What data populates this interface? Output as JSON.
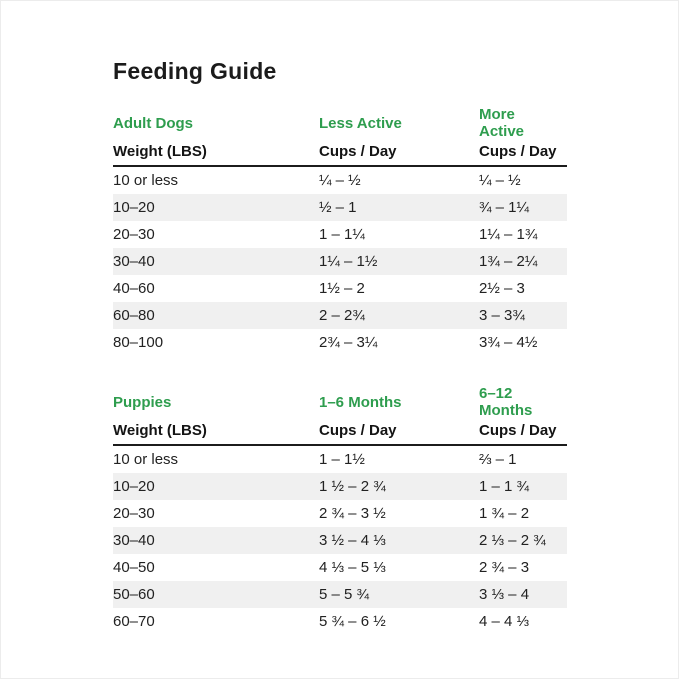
{
  "page": {
    "title": "Feeding Guide"
  },
  "colors": {
    "accent_green": "#2e9d4e",
    "stripe_gray": "#f0f0f0",
    "text_dark": "#1b1b1b"
  },
  "tables": [
    {
      "group_label": "Adult Dogs",
      "col2_label": "Less Active",
      "col3_label": "More Active",
      "header": [
        "Weight (LBS)",
        "Cups / Day",
        "Cups / Day"
      ],
      "rows": [
        [
          "10 or less",
          "¼ – ½",
          "¼ – ½"
        ],
        [
          "10–20",
          "½ – 1",
          "¾ – 1¼"
        ],
        [
          "20–30",
          "1 – 1¼",
          "1¼ – 1¾"
        ],
        [
          "30–40",
          "1¼ – 1½",
          "1¾ – 2¼"
        ],
        [
          "40–60",
          "1½ – 2",
          "2½ – 3"
        ],
        [
          "60–80",
          "2 – 2¾",
          "3 – 3¾"
        ],
        [
          "80–100",
          "2¾ – 3¼",
          "3¾ – 4½"
        ]
      ]
    },
    {
      "group_label": "Puppies",
      "col2_label": "1–6 Months",
      "col3_label": "6–12 Months",
      "header": [
        "Weight (LBS)",
        "Cups / Day",
        "Cups / Day"
      ],
      "rows": [
        [
          "10 or less",
          "1 – 1½",
          "⅔ – 1"
        ],
        [
          "10–20",
          "1 ½ – 2 ¾",
          "1 – 1 ¾"
        ],
        [
          "20–30",
          "2 ¾ – 3 ½",
          "1 ¾ – 2"
        ],
        [
          "30–40",
          "3 ½ – 4 ⅓",
          "2 ⅓ – 2 ¾"
        ],
        [
          "40–50",
          "4 ⅓ – 5 ⅓",
          "2 ¾ – 3"
        ],
        [
          "50–60",
          "5 – 5 ¾",
          "3 ⅓ – 4"
        ],
        [
          "60–70",
          "5 ¾ – 6 ½",
          "4 – 4 ⅓"
        ]
      ]
    }
  ]
}
